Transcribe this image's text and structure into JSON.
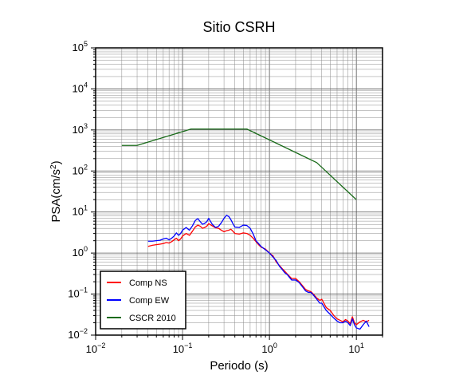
{
  "chart_data": {
    "type": "line",
    "title": "Sitio CSRH",
    "xlabel": "Periodo (s)",
    "ylabel": "PSA(cm/s2)",
    "ylabel_base": "PSA(cm/s",
    "ylabel_sup": "2",
    "ylabel_close": ")",
    "x_scale": "log",
    "y_scale": "log",
    "xlim": [
      0.01,
      20
    ],
    "ylim": [
      0.01,
      100000
    ],
    "grid": true,
    "legend_position": "bottom-left",
    "x_ticks": [
      {
        "base": "10",
        "exp": "−2"
      },
      {
        "base": "10",
        "exp": "−1"
      },
      {
        "base": "10",
        "exp": "0"
      },
      {
        "base": "10",
        "exp": "1"
      }
    ],
    "y_ticks": [
      {
        "base": "10",
        "exp": "−2"
      },
      {
        "base": "10",
        "exp": "−1"
      },
      {
        "base": "10",
        "exp": "0"
      },
      {
        "base": "10",
        "exp": "1"
      },
      {
        "base": "10",
        "exp": "2"
      },
      {
        "base": "10",
        "exp": "3"
      },
      {
        "base": "10",
        "exp": "4"
      },
      {
        "base": "10",
        "exp": "5"
      }
    ],
    "series": [
      {
        "name": "Comp NS",
        "color": "#ff0000",
        "x": [
          0.04,
          0.045,
          0.05,
          0.055,
          0.06,
          0.065,
          0.07,
          0.075,
          0.08,
          0.085,
          0.09,
          0.095,
          0.1,
          0.11,
          0.12,
          0.13,
          0.14,
          0.15,
          0.16,
          0.17,
          0.18,
          0.19,
          0.2,
          0.22,
          0.24,
          0.26,
          0.28,
          0.3,
          0.32,
          0.34,
          0.36,
          0.38,
          0.4,
          0.45,
          0.5,
          0.55,
          0.6,
          0.65,
          0.7,
          0.75,
          0.8,
          0.9,
          1.0,
          1.1,
          1.2,
          1.3,
          1.4,
          1.5,
          1.6,
          1.8,
          2.0,
          2.2,
          2.4,
          2.6,
          2.8,
          3.0,
          3.2,
          3.5,
          3.8,
          4.0,
          4.5,
          5.0,
          5.5,
          6.0,
          6.5,
          7.0,
          7.5,
          8.0,
          8.5,
          9.0,
          9.5,
          10.0,
          11.0,
          12.0,
          13.0,
          14.0
        ],
        "y": [
          1.45,
          1.55,
          1.6,
          1.65,
          1.7,
          1.8,
          1.75,
          1.9,
          2.1,
          2.3,
          2.0,
          2.2,
          2.6,
          3.0,
          2.7,
          3.4,
          4.3,
          4.8,
          4.5,
          4.0,
          4.2,
          4.5,
          5.2,
          4.6,
          4.1,
          4.0,
          3.6,
          3.3,
          3.5,
          3.6,
          3.8,
          3.4,
          3.0,
          2.9,
          3.1,
          3.0,
          2.7,
          2.3,
          1.9,
          1.6,
          1.4,
          1.25,
          1.0,
          0.85,
          0.6,
          0.5,
          0.42,
          0.36,
          0.31,
          0.24,
          0.24,
          0.2,
          0.16,
          0.13,
          0.12,
          0.115,
          0.1,
          0.08,
          0.07,
          0.075,
          0.047,
          0.04,
          0.03,
          0.025,
          0.023,
          0.021,
          0.024,
          0.022,
          0.019,
          0.028,
          0.02,
          0.018,
          0.021,
          0.023,
          0.021,
          0.023
        ]
      },
      {
        "name": "Comp EW",
        "color": "#0000ff",
        "x": [
          0.04,
          0.045,
          0.05,
          0.055,
          0.06,
          0.065,
          0.07,
          0.075,
          0.08,
          0.085,
          0.09,
          0.095,
          0.1,
          0.11,
          0.12,
          0.13,
          0.14,
          0.15,
          0.16,
          0.17,
          0.18,
          0.19,
          0.2,
          0.22,
          0.24,
          0.26,
          0.28,
          0.3,
          0.32,
          0.34,
          0.36,
          0.38,
          0.4,
          0.45,
          0.5,
          0.55,
          0.6,
          0.65,
          0.7,
          0.75,
          0.8,
          0.9,
          1.0,
          1.1,
          1.2,
          1.3,
          1.4,
          1.5,
          1.6,
          1.8,
          2.0,
          2.2,
          2.4,
          2.6,
          2.8,
          3.0,
          3.2,
          3.5,
          3.8,
          4.0,
          4.5,
          5.0,
          5.5,
          6.0,
          6.5,
          7.0,
          7.5,
          8.0,
          8.5,
          9.0,
          9.5,
          10.0,
          11.0,
          12.0,
          13.0,
          14.0
        ],
        "y": [
          1.95,
          1.95,
          2.0,
          2.05,
          2.2,
          2.3,
          2.1,
          2.3,
          2.6,
          3.1,
          2.7,
          3.0,
          3.6,
          4.2,
          3.6,
          4.6,
          6.2,
          6.9,
          5.8,
          5.0,
          5.3,
          5.8,
          7.0,
          5.0,
          4.2,
          4.5,
          5.5,
          7.0,
          8.3,
          7.8,
          6.5,
          5.2,
          4.3,
          4.2,
          4.8,
          4.7,
          4.0,
          2.9,
          2.0,
          1.7,
          1.45,
          1.2,
          1.0,
          0.8,
          0.65,
          0.48,
          0.4,
          0.33,
          0.3,
          0.22,
          0.22,
          0.19,
          0.15,
          0.12,
          0.11,
          0.11,
          0.095,
          0.075,
          0.06,
          0.06,
          0.04,
          0.032,
          0.026,
          0.022,
          0.02,
          0.02,
          0.022,
          0.02,
          0.017,
          0.025,
          0.018,
          0.015,
          0.014,
          0.018,
          0.022,
          0.016
        ]
      },
      {
        "name": "CSCR 2010",
        "color": "#1a6b1a",
        "x": [
          0.02,
          0.03,
          0.125,
          0.55,
          3.5,
          10.0
        ],
        "y": [
          420,
          420,
          1050,
          1050,
          160,
          20
        ]
      }
    ]
  }
}
